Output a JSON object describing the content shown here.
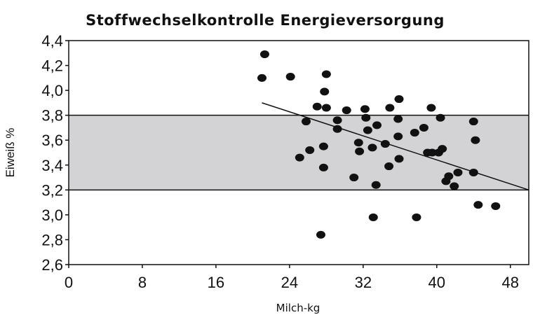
{
  "chart_data": {
    "type": "scatter",
    "title": "Stoffwechselkontrolle Energieversorgung",
    "xlabel": "Milch-kg",
    "ylabel": "Eiweiß %",
    "xlim": [
      0,
      50
    ],
    "ylim": [
      2.6,
      4.4
    ],
    "x_ticks": [
      0,
      8,
      16,
      24,
      32,
      40,
      48
    ],
    "x_tick_labels": [
      "0",
      "8",
      "16",
      "24",
      "32",
      "40",
      "48"
    ],
    "y_ticks": [
      2.6,
      2.8,
      3.0,
      3.2,
      3.4,
      3.6,
      3.8,
      4.0,
      4.2,
      4.4
    ],
    "y_tick_labels": [
      "2,6",
      "2,8",
      "3,0",
      "3,2",
      "3,4",
      "3,6",
      "3,8",
      "4,0",
      "4,2",
      "4,4"
    ],
    "reference_band": {
      "y_low": 3.2,
      "y_high": 3.8,
      "color": "#d3d3d5"
    },
    "trend_line": {
      "x": [
        21,
        50
      ],
      "y": [
        3.9,
        3.2
      ]
    },
    "point_color": "#111111",
    "points": [
      [
        21.0,
        4.1
      ],
      [
        21.3,
        4.29
      ],
      [
        24.1,
        4.11
      ],
      [
        28.0,
        4.13
      ],
      [
        27.8,
        3.99
      ],
      [
        28.0,
        3.86
      ],
      [
        27.0,
        3.87
      ],
      [
        35.9,
        3.93
      ],
      [
        32.2,
        3.85
      ],
      [
        30.2,
        3.84
      ],
      [
        32.3,
        3.78
      ],
      [
        34.9,
        3.86
      ],
      [
        39.4,
        3.86
      ],
      [
        35.8,
        3.77
      ],
      [
        40.4,
        3.78
      ],
      [
        44.0,
        3.75
      ],
      [
        25.8,
        3.75
      ],
      [
        29.2,
        3.76
      ],
      [
        29.2,
        3.69
      ],
      [
        32.5,
        3.68
      ],
      [
        33.5,
        3.72
      ],
      [
        37.6,
        3.66
      ],
      [
        38.6,
        3.7
      ],
      [
        35.8,
        3.63
      ],
      [
        44.2,
        3.6
      ],
      [
        31.5,
        3.58
      ],
      [
        34.4,
        3.57
      ],
      [
        27.7,
        3.55
      ],
      [
        26.2,
        3.52
      ],
      [
        31.6,
        3.51
      ],
      [
        33.0,
        3.54
      ],
      [
        39.0,
        3.5
      ],
      [
        39.5,
        3.5
      ],
      [
        40.2,
        3.5
      ],
      [
        40.6,
        3.53
      ],
      [
        25.1,
        3.46
      ],
      [
        35.9,
        3.45
      ],
      [
        27.7,
        3.38
      ],
      [
        34.8,
        3.39
      ],
      [
        44.0,
        3.34
      ],
      [
        42.3,
        3.34
      ],
      [
        41.3,
        3.31
      ],
      [
        41.0,
        3.27
      ],
      [
        31.0,
        3.3
      ],
      [
        41.9,
        3.23
      ],
      [
        33.4,
        3.24
      ],
      [
        44.5,
        3.08
      ],
      [
        46.4,
        3.07
      ],
      [
        33.1,
        2.98
      ],
      [
        37.8,
        2.98
      ],
      [
        27.4,
        2.84
      ]
    ]
  }
}
